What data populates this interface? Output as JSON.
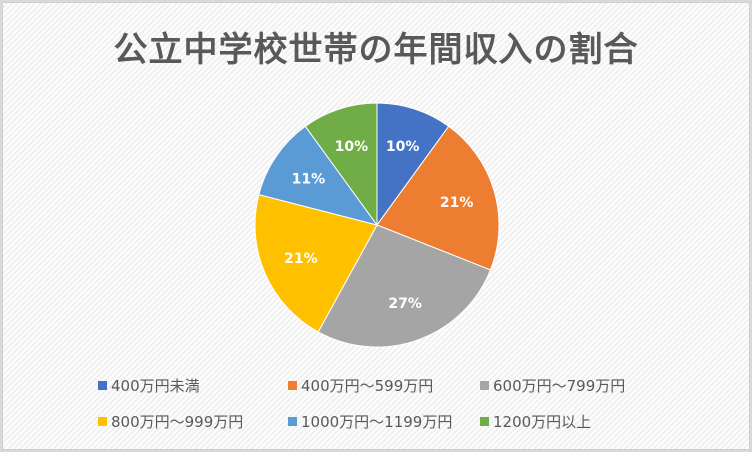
{
  "chart_data": {
    "type": "pie",
    "title": "公立中学校世帯の年間収入の割合",
    "categories": [
      "400万円未満",
      "400万円～599万円",
      "600万円～799万円",
      "800万円～999万円",
      "1000万円～1199万円",
      "1200万円以上"
    ],
    "values": [
      10,
      21,
      27,
      21,
      11,
      10
    ],
    "labels": [
      "10%",
      "21%",
      "27%",
      "21%",
      "11%",
      "10%"
    ],
    "colors": [
      "#4472c4",
      "#ed7d31",
      "#a5a5a5",
      "#ffc000",
      "#5b9bd5",
      "#70ad47"
    ],
    "legend_position": "bottom",
    "start_angle": "12 o'clock, clockwise"
  },
  "legend": {
    "items": [
      {
        "label": "400万円未満",
        "color": "#4472c4"
      },
      {
        "label": "400万円～599万円",
        "color": "#ed7d31"
      },
      {
        "label": "600万円～799万円",
        "color": "#a5a5a5"
      },
      {
        "label": "800万円～999万円",
        "color": "#ffc000"
      },
      {
        "label": "1000万円～1199万円",
        "color": "#5b9bd5"
      },
      {
        "label": "1200万円以上",
        "color": "#70ad47"
      }
    ]
  }
}
